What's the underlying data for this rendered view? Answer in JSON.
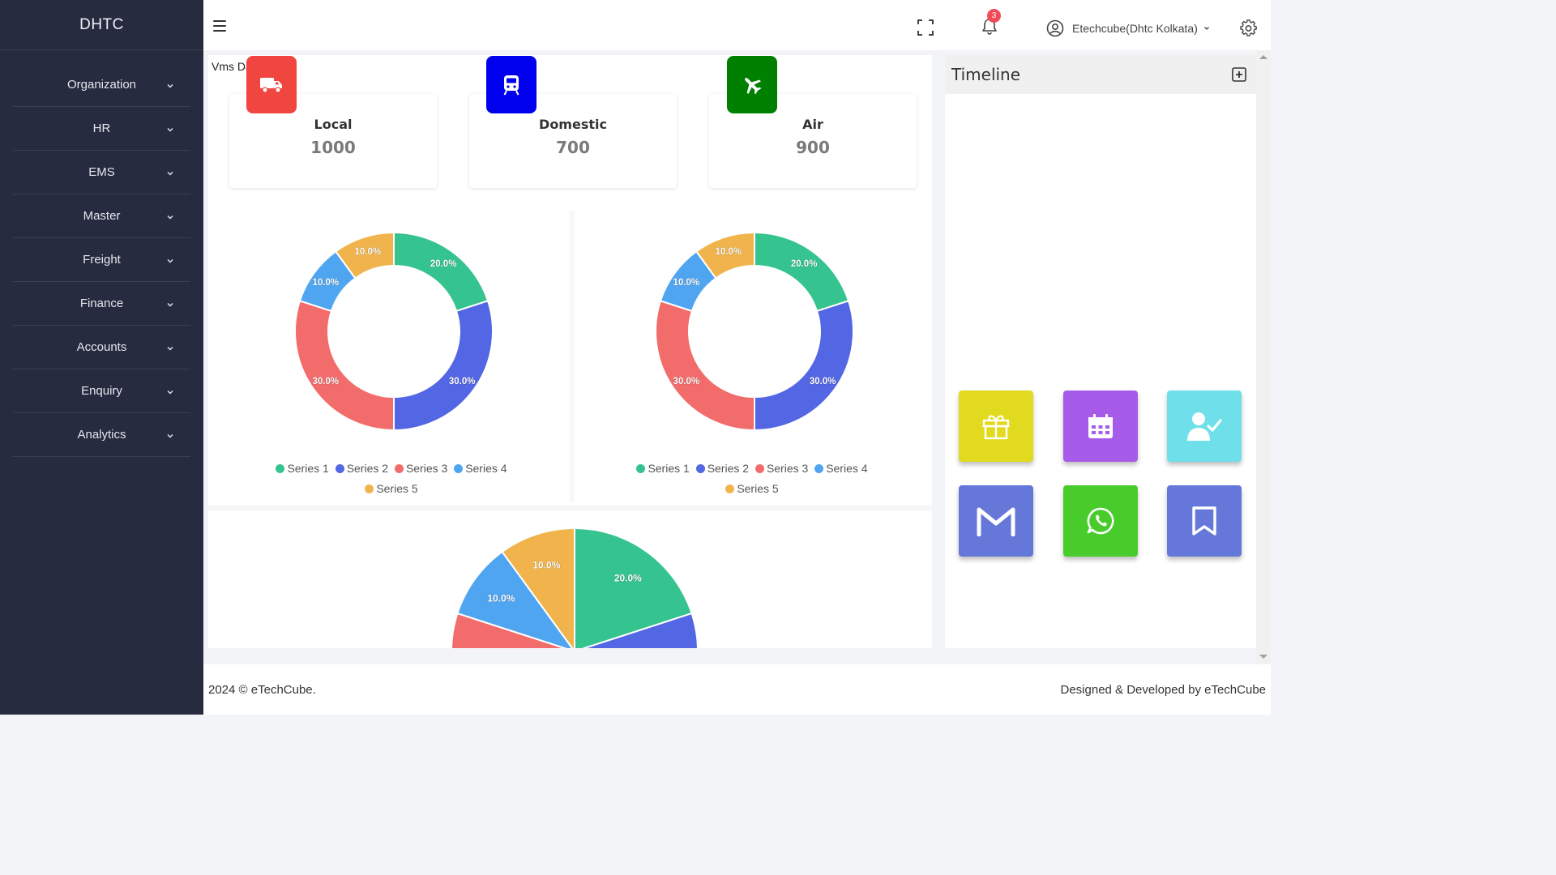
{
  "app": {
    "brand": "DHTC"
  },
  "sidebar": {
    "items": [
      {
        "label": "Organization"
      },
      {
        "label": "HR"
      },
      {
        "label": "EMS"
      },
      {
        "label": "Master"
      },
      {
        "label": "Freight"
      },
      {
        "label": "Finance"
      },
      {
        "label": "Accounts"
      },
      {
        "label": "Enquiry"
      },
      {
        "label": "Analytics"
      }
    ]
  },
  "topbar": {
    "notification_count": "3",
    "user_name": "Etechcube(Dhtc Kolkata)"
  },
  "breadcrumb": "Vms Dashboard",
  "cards": [
    {
      "title": "Local",
      "value": "1000",
      "color": "#f0463f",
      "icon": "truck-icon"
    },
    {
      "title": "Domestic",
      "value": "700",
      "color": "#0000ee",
      "icon": "train-icon"
    },
    {
      "title": "Air",
      "value": "900",
      "color": "#008000",
      "icon": "airplane-icon"
    }
  ],
  "legend_labels": {
    "s1": "Series 1",
    "s2": "Series 2",
    "s3": "Series 3",
    "s4": "Series 4",
    "s5": "Series 5"
  },
  "timeline": {
    "title": "Timeline"
  },
  "quick_tiles": [
    {
      "icon": "gift-icon",
      "color": "#e2da1e"
    },
    {
      "icon": "calendar-icon",
      "color": "#a65ce8"
    },
    {
      "icon": "user-check-icon",
      "color": "#6fe0ea"
    },
    {
      "icon": "gmail-icon",
      "color": "#6577d9"
    },
    {
      "icon": "whatsapp-icon",
      "color": "#48cc2c"
    },
    {
      "icon": "bookmark-icon",
      "color": "#6577d9"
    }
  ],
  "footer": {
    "left": "2024 © eTechCube.",
    "right": "Designed & Developed by eTechCube"
  },
  "chart_data": [
    {
      "type": "pie",
      "variant": "donut",
      "series": [
        {
          "name": "Series 1",
          "value": 20,
          "label": "20.0%",
          "color": "#35c38f"
        },
        {
          "name": "Series 2",
          "value": 30,
          "label": "30.0%",
          "color": "#5366e3"
        },
        {
          "name": "Series 3",
          "value": 30,
          "label": "30.0%",
          "color": "#f26c6c"
        },
        {
          "name": "Series 4",
          "value": 10,
          "label": "10.0%",
          "color": "#50a5f1"
        },
        {
          "name": "Series 5",
          "value": 10,
          "label": "10.0%",
          "color": "#f1b44c"
        }
      ],
      "legend": "bottom"
    },
    {
      "type": "pie",
      "variant": "donut",
      "series": [
        {
          "name": "Series 1",
          "value": 20,
          "label": "20.0%",
          "color": "#35c38f"
        },
        {
          "name": "Series 2",
          "value": 30,
          "label": "30.0%",
          "color": "#5366e3"
        },
        {
          "name": "Series 3",
          "value": 30,
          "label": "30.0%",
          "color": "#f26c6c"
        },
        {
          "name": "Series 4",
          "value": 10,
          "label": "10.0%",
          "color": "#50a5f1"
        },
        {
          "name": "Series 5",
          "value": 10,
          "label": "10.0%",
          "color": "#f1b44c"
        }
      ],
      "legend": "bottom"
    },
    {
      "type": "pie",
      "series": [
        {
          "name": "Series 1",
          "value": 20,
          "label": "20.0%",
          "color": "#35c38f"
        },
        {
          "name": "Series 2",
          "value": 30,
          "label": "",
          "color": "#5366e3"
        },
        {
          "name": "Series 3",
          "value": 30,
          "label": "",
          "color": "#f26c6c"
        },
        {
          "name": "Series 4",
          "value": 10,
          "label": "10.0%",
          "color": "#50a5f1"
        },
        {
          "name": "Series 5",
          "value": 10,
          "label": "10.0%",
          "color": "#f1b44c"
        }
      ]
    }
  ]
}
